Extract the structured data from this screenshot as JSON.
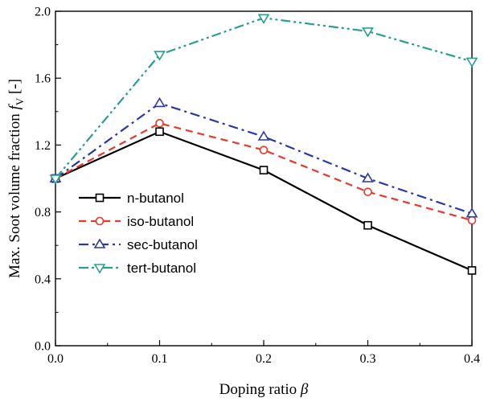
{
  "chart_data": {
    "type": "line",
    "xlabel": {
      "text": "Doping ratio ",
      "symbol": "β"
    },
    "ylabel": {
      "text": "Max. Soot volume fraction ",
      "symbol": "f",
      "subscript": "V",
      "suffix": " [-]"
    },
    "x": [
      0.0,
      0.1,
      0.2,
      0.3,
      0.4
    ],
    "xlim": [
      0.0,
      0.4
    ],
    "ylim": [
      0.0,
      2.0
    ],
    "xticks": [
      "0.0",
      "0.1",
      "0.2",
      "0.3",
      "0.4"
    ],
    "yticks": [
      "0.0",
      "0.4",
      "0.8",
      "1.2",
      "1.6",
      "2.0"
    ],
    "legend_position": "lower-left",
    "grid": false,
    "series": [
      {
        "name": "n-butanol",
        "values": [
          1.0,
          1.28,
          1.05,
          0.72,
          0.45
        ],
        "color": "#000000",
        "marker": "square",
        "dash": "solid"
      },
      {
        "name": "iso-butanol",
        "values": [
          1.0,
          1.33,
          1.17,
          0.92,
          0.75
        ],
        "color": "#e8392c",
        "marker": "circle",
        "dash": "dash"
      },
      {
        "name": "sec-butanol",
        "values": [
          1.0,
          1.45,
          1.25,
          1.0,
          0.79
        ],
        "color": "#2a37a6",
        "marker": "triangle-up",
        "dash": "dashdot"
      },
      {
        "name": "tert-butanol",
        "values": [
          1.0,
          1.74,
          1.96,
          1.88,
          1.7
        ],
        "color": "#2a9d92",
        "marker": "triangle-down",
        "dash": "dashdotdot"
      }
    ]
  }
}
